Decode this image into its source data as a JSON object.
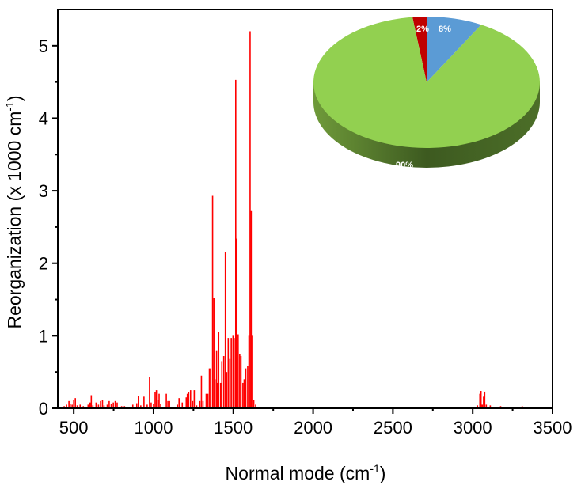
{
  "chart_data": {
    "type": "bar",
    "subtype": "stick-spectrum",
    "xlabel": "Normal mode (cm",
    "xlabel_sup": "-1",
    "xlabel_end": ")",
    "ylabel": "Reorganization (x 1000 cm",
    "ylabel_sup": "-1",
    "ylabel_end": ")",
    "xlim": [
      400,
      3500
    ],
    "ylim": [
      0,
      5.5
    ],
    "xticks": [
      500,
      1000,
      1500,
      2000,
      2500,
      3000,
      3500
    ],
    "xtick_labels": [
      "500",
      "1000",
      "1500",
      "2000",
      "2500",
      "3000",
      "3500"
    ],
    "yticks": [
      0,
      1,
      2,
      3,
      4,
      5
    ],
    "ytick_labels": [
      "0",
      "1",
      "2",
      "3",
      "4",
      "5"
    ],
    "bar_color": "#ff0000",
    "sticks": [
      [
        440,
        0.03
      ],
      [
        455,
        0.05
      ],
      [
        470,
        0.1
      ],
      [
        478,
        0.06
      ],
      [
        490,
        0.05
      ],
      [
        500,
        0.12
      ],
      [
        510,
        0.14
      ],
      [
        522,
        0.04
      ],
      [
        540,
        0.05
      ],
      [
        560,
        0.03
      ],
      [
        590,
        0.05
      ],
      [
        602,
        0.08
      ],
      [
        610,
        0.18
      ],
      [
        620,
        0.04
      ],
      [
        640,
        0.08
      ],
      [
        655,
        0.05
      ],
      [
        668,
        0.1
      ],
      [
        680,
        0.12
      ],
      [
        690,
        0.04
      ],
      [
        710,
        0.05
      ],
      [
        722,
        0.1
      ],
      [
        735,
        0.06
      ],
      [
        748,
        0.08
      ],
      [
        760,
        0.1
      ],
      [
        772,
        0.08
      ],
      [
        800,
        0.03
      ],
      [
        818,
        0.03
      ],
      [
        840,
        0.02
      ],
      [
        870,
        0.05
      ],
      [
        895,
        0.07
      ],
      [
        905,
        0.17
      ],
      [
        920,
        0.04
      ],
      [
        940,
        0.16
      ],
      [
        960,
        0.05
      ],
      [
        975,
        0.43
      ],
      [
        985,
        0.08
      ],
      [
        1000,
        0.06
      ],
      [
        1010,
        0.22
      ],
      [
        1018,
        0.25
      ],
      [
        1028,
        0.11
      ],
      [
        1035,
        0.2
      ],
      [
        1045,
        0.06
      ],
      [
        1080,
        0.2
      ],
      [
        1090,
        0.1
      ],
      [
        1100,
        0.1
      ],
      [
        1150,
        0.05
      ],
      [
        1160,
        0.14
      ],
      [
        1180,
        0.08
      ],
      [
        1205,
        0.15
      ],
      [
        1212,
        0.2
      ],
      [
        1220,
        0.22
      ],
      [
        1232,
        0.25
      ],
      [
        1245,
        0.1
      ],
      [
        1255,
        0.25
      ],
      [
        1270,
        0.04
      ],
      [
        1290,
        0.1
      ],
      [
        1300,
        0.45
      ],
      [
        1310,
        0.1
      ],
      [
        1330,
        0.2
      ],
      [
        1340,
        0.2
      ],
      [
        1350,
        0.55
      ],
      [
        1358,
        0.55
      ],
      [
        1370,
        2.93
      ],
      [
        1378,
        1.52
      ],
      [
        1385,
        0.4
      ],
      [
        1395,
        0.8
      ],
      [
        1400,
        0.35
      ],
      [
        1408,
        1.05
      ],
      [
        1420,
        0.35
      ],
      [
        1428,
        0.65
      ],
      [
        1440,
        0.72
      ],
      [
        1450,
        2.16
      ],
      [
        1458,
        0.5
      ],
      [
        1468,
        0.97
      ],
      [
        1478,
        0.68
      ],
      [
        1487,
        0.97
      ],
      [
        1498,
        1.0
      ],
      [
        1505,
        0.97
      ],
      [
        1515,
        4.53
      ],
      [
        1522,
        2.34
      ],
      [
        1530,
        1.02
      ],
      [
        1540,
        0.75
      ],
      [
        1548,
        0.72
      ],
      [
        1560,
        0.35
      ],
      [
        1568,
        0.4
      ],
      [
        1578,
        0.55
      ],
      [
        1590,
        0.58
      ],
      [
        1598,
        1.0
      ],
      [
        1605,
        5.2
      ],
      [
        1612,
        2.72
      ],
      [
        1620,
        1.0
      ],
      [
        1628,
        0.12
      ],
      [
        1640,
        0.05
      ],
      [
        1700,
        0.02
      ],
      [
        1750,
        0.02
      ],
      [
        3030,
        0.04
      ],
      [
        3045,
        0.2
      ],
      [
        3052,
        0.24
      ],
      [
        3060,
        0.05
      ],
      [
        3068,
        0.16
      ],
      [
        3075,
        0.23
      ],
      [
        3085,
        0.05
      ],
      [
        3110,
        0.04
      ],
      [
        3160,
        0.02
      ],
      [
        3175,
        0.03
      ],
      [
        3310,
        0.03
      ]
    ],
    "inset_pie": {
      "type": "pie",
      "style": "3d",
      "slices": [
        {
          "label": "2%",
          "value": 2,
          "color": "#c00000"
        },
        {
          "label": "8%",
          "value": 8,
          "color": "#5b9bd5"
        },
        {
          "label": "90%",
          "value": 90,
          "color": "#92d050"
        }
      ]
    },
    "grid": false,
    "legend": "none"
  }
}
